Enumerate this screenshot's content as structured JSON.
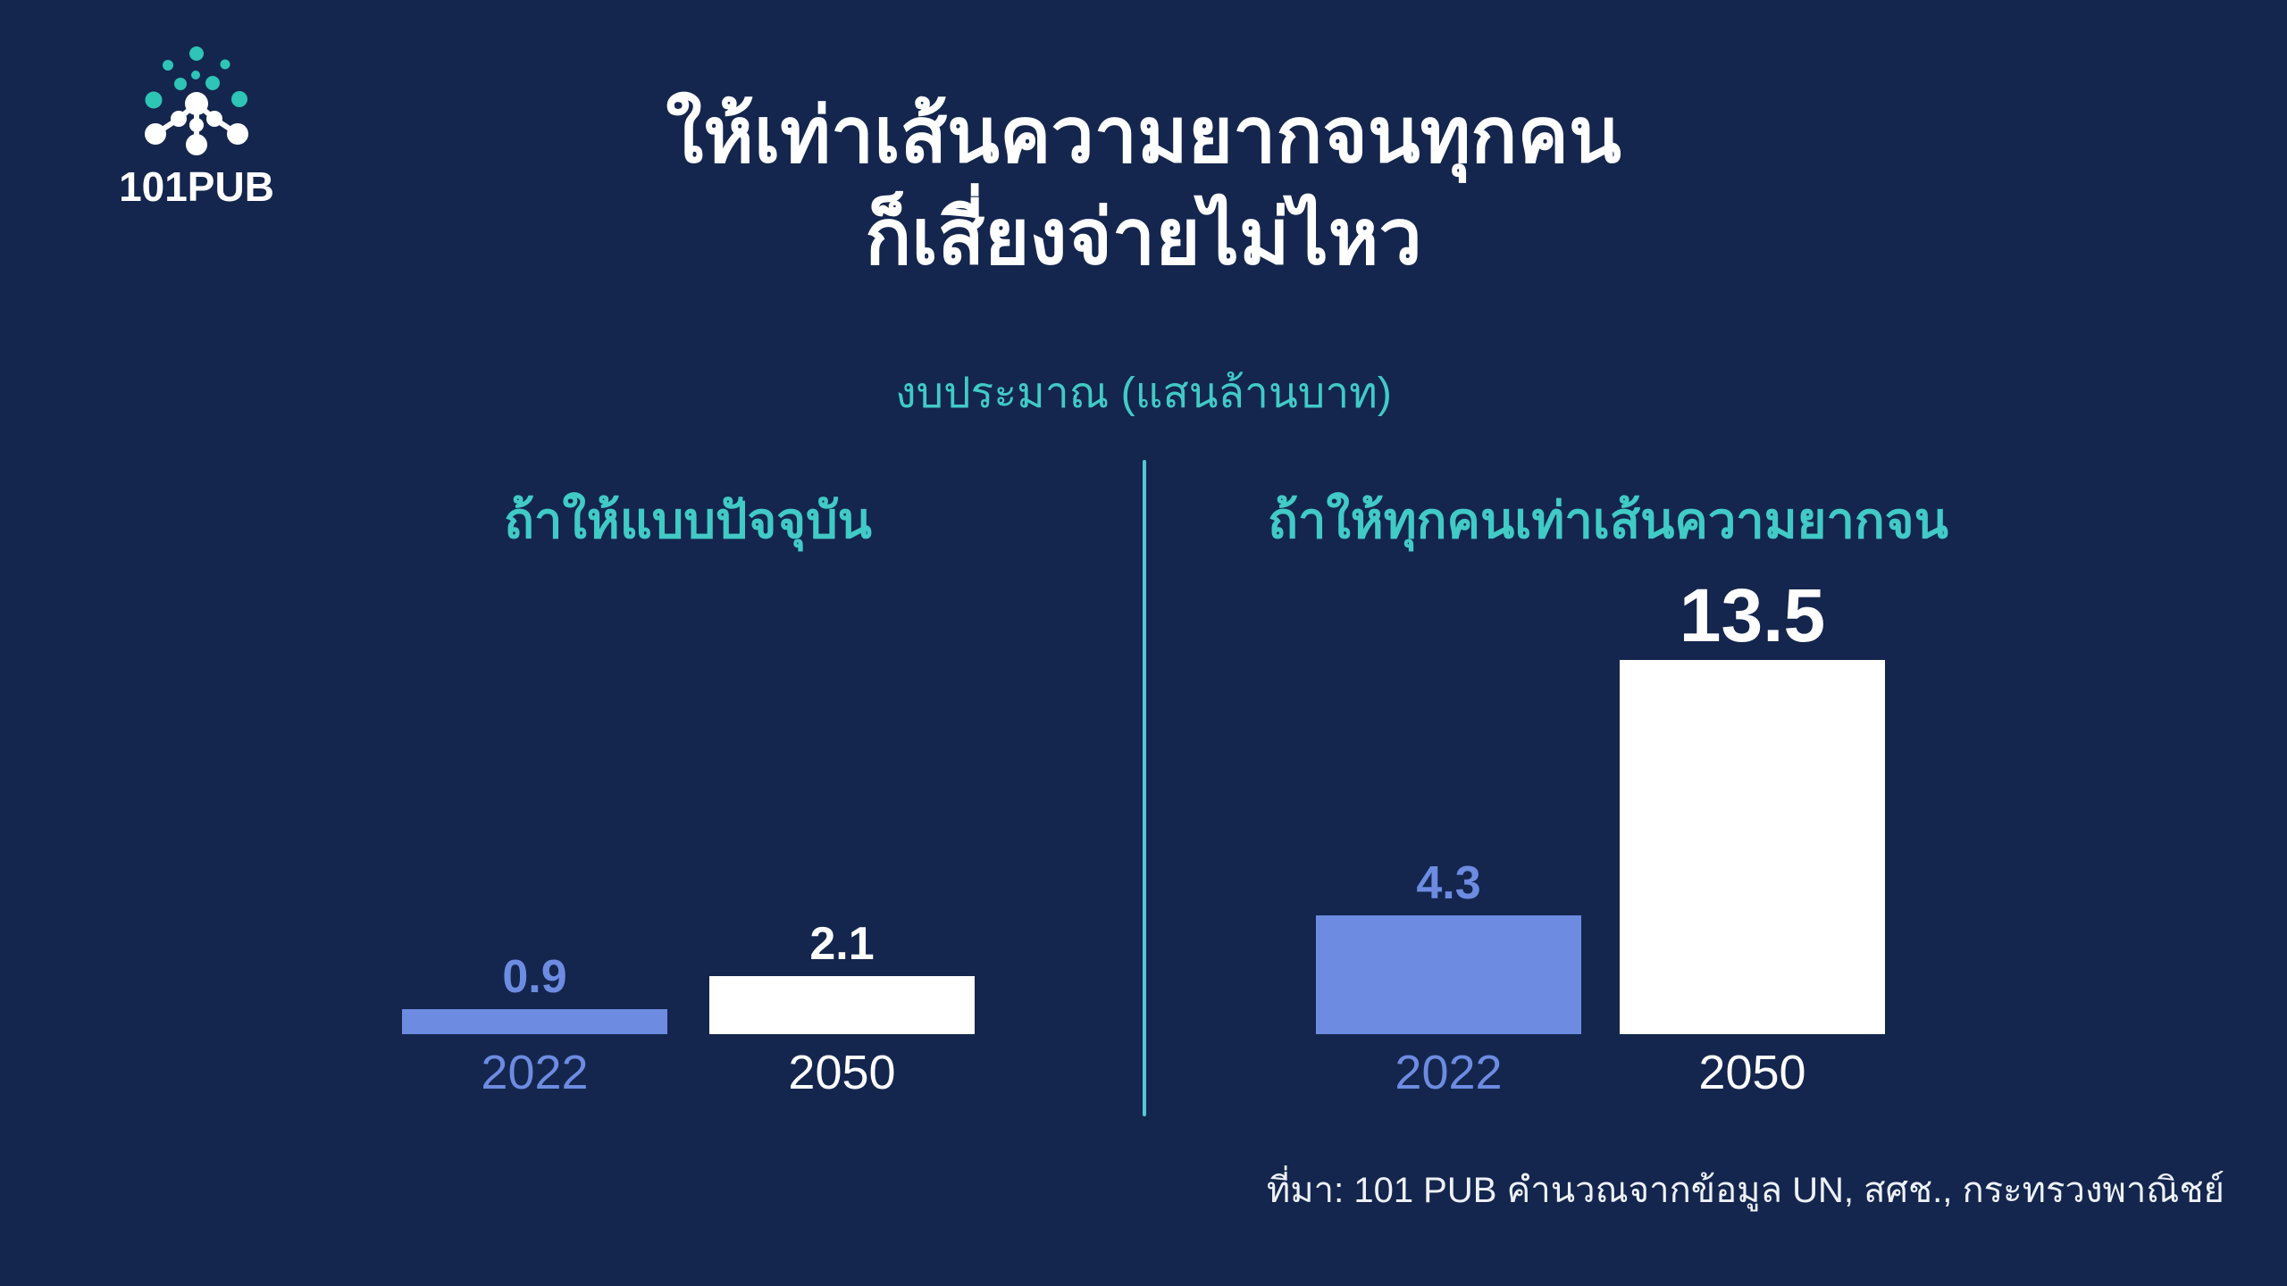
{
  "logo": {
    "text": "101PUB"
  },
  "header": {
    "title_line1": "ให้เท่าเส้นความยากจนทุกคน",
    "title_line2": "ก็เสี่ยงจ่ายไม่ไหว",
    "subtitle": "งบประมาณ (แสนล้านบาท)"
  },
  "source": {
    "text": "ที่มา: 101 PUB คำนวณจากข้อมูล UN, สศช., กระทรวงพาณิชย์"
  },
  "colors": {
    "background": "#14264E",
    "teal_accent": "#41CAC6",
    "divider_teal": "#55C8D6",
    "bar_blue": "#6D8CE1",
    "bar_white": "#FFFFFF"
  },
  "chart_data": [
    {
      "type": "bar",
      "title": "ถ้าให้แบบปัจจุบัน",
      "categories": [
        "2022",
        "2050"
      ],
      "values": [
        0.9,
        2.1
      ],
      "value_labels": [
        "0.9",
        "2.1"
      ],
      "unit": "แสนล้านบาท",
      "ylabel": "งบประมาณ (แสนล้านบาท)",
      "ylim": [
        0,
        14
      ],
      "grid": false,
      "legend": "none",
      "bar_colors": [
        "#6D8CE1",
        "#FFFFFF"
      ],
      "label_colors": [
        "#6D8CE1",
        "#FFFFFF"
      ]
    },
    {
      "type": "bar",
      "title": "ถ้าให้ทุกคนเท่าเส้นความยากจน",
      "categories": [
        "2022",
        "2050"
      ],
      "values": [
        4.3,
        13.5
      ],
      "value_labels": [
        "4.3",
        "13.5"
      ],
      "unit": "แสนล้านบาท",
      "ylabel": "งบประมาณ (แสนล้านบาท)",
      "ylim": [
        0,
        14
      ],
      "grid": false,
      "legend": "none",
      "bar_colors": [
        "#6D8CE1",
        "#FFFFFF"
      ],
      "label_colors": [
        "#6D8CE1",
        "#FFFFFF"
      ]
    }
  ]
}
